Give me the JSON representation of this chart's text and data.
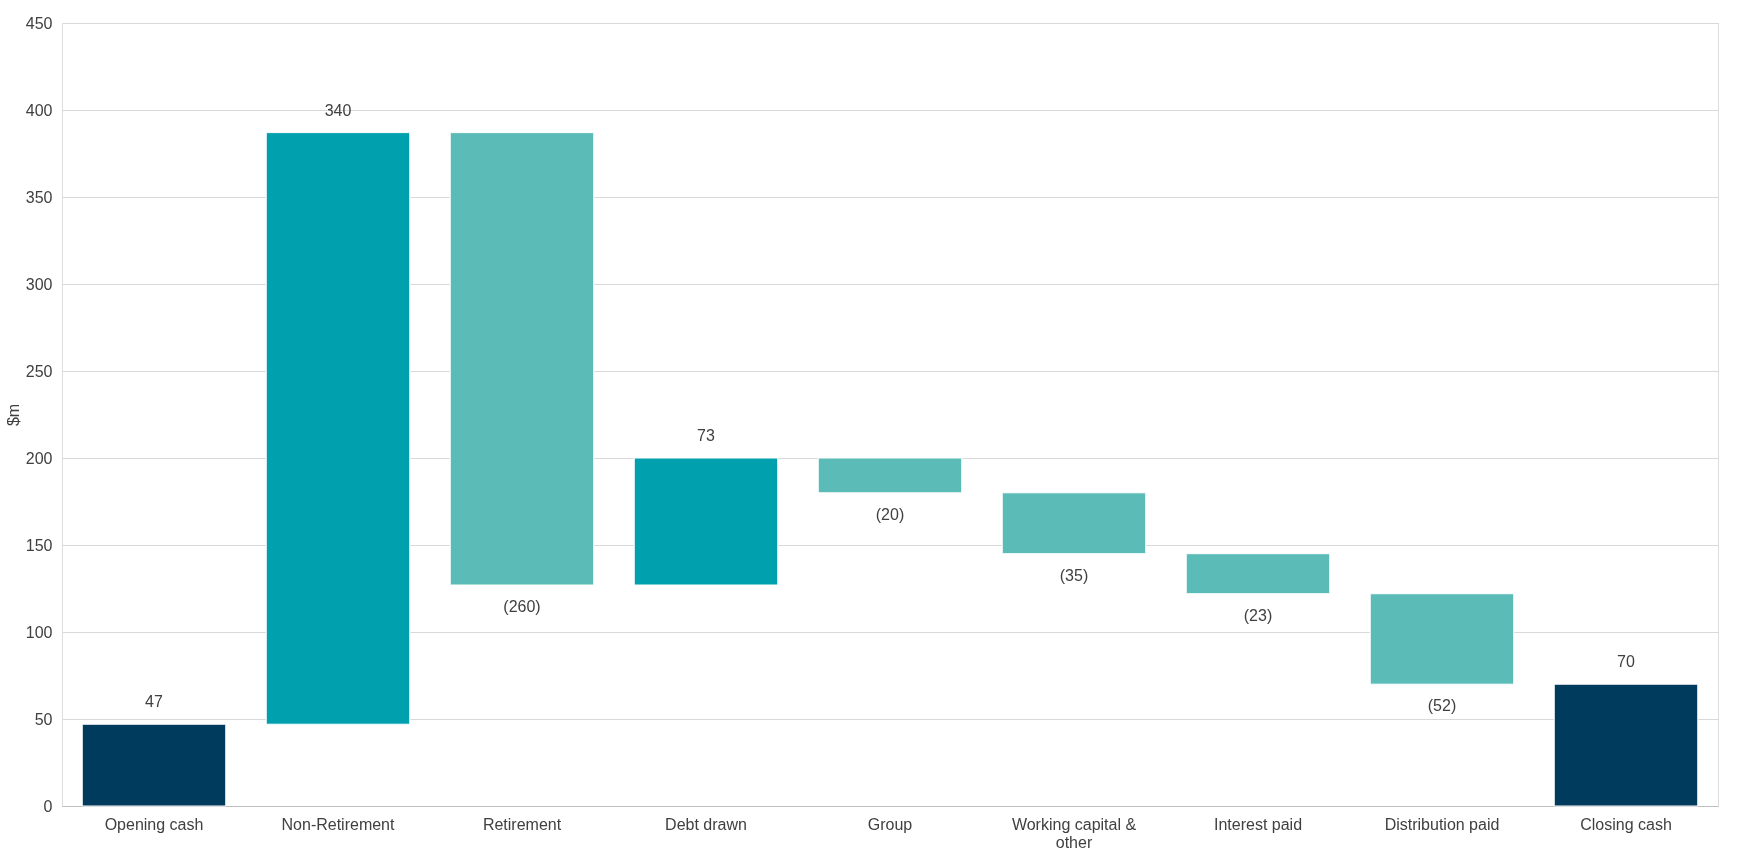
{
  "chart_data": {
    "type": "bar",
    "ylabel": "$m",
    "categories": [
      "Opening cash",
      "Non-Retirement",
      "Retirement",
      "Debt drawn",
      "Group",
      "Working capital & other",
      "Interest paid",
      "Distribution paid",
      "Closing cash"
    ],
    "values": [
      47,
      340,
      -260,
      73,
      -20,
      -35,
      -23,
      -52,
      70
    ],
    "base": [
      0,
      47,
      387,
      127,
      200,
      180,
      145,
      122,
      0
    ],
    "colors": [
      "#003a5c",
      "#00a0af",
      "#5bbbb7",
      "#00a0af",
      "#5bbbb7",
      "#5bbbb7",
      "#5bbbb7",
      "#5bbbb7",
      "#003a5c"
    ],
    "value_labels": [
      "47",
      "340",
      "(260)",
      "73",
      "(20)",
      "(35)",
      "(23)",
      "(52)",
      "70"
    ],
    "ylim": [
      0,
      450
    ],
    "yticks": [
      0,
      50,
      100,
      150,
      200,
      250,
      300,
      350,
      400,
      450
    ],
    "grid": "y",
    "legend": false
  }
}
